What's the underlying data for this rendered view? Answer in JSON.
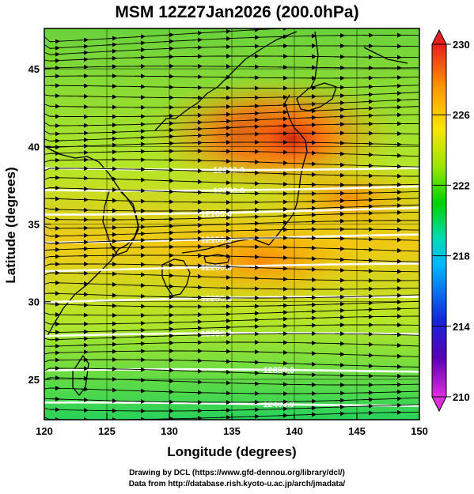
{
  "title": "MSM 12Z27Jan2026 (200.0hPa)",
  "x_axis": {
    "label": "Longitude (degrees)",
    "range": [
      120,
      150
    ],
    "ticks": [
      "120",
      "125",
      "130",
      "135",
      "140",
      "145",
      "150"
    ]
  },
  "y_axis": {
    "label": "Latitude  (degrees)",
    "range": [
      22.4,
      47.6
    ],
    "ticks": [
      "25",
      "30",
      "35",
      "40",
      "45"
    ]
  },
  "colorbar": {
    "range": [
      210,
      230
    ],
    "ticks": [
      "210",
      "214",
      "218",
      "222",
      "226",
      "230"
    ],
    "color_stops": [
      "#e02ce0",
      "#5a00b4",
      "#1428dc",
      "#00b4ff",
      "#00dcb4",
      "#00d200",
      "#96e600",
      "#fae600",
      "#ff9600",
      "#e61e1e"
    ]
  },
  "contours": [
    {
      "label": "12000.0",
      "lat": 38.6
    },
    {
      "label": "12050.0",
      "lat": 37.3
    },
    {
      "label": "12100.0",
      "lat": 35.8
    },
    {
      "label": "12150.0",
      "lat": 34.0
    },
    {
      "label": "12200.0",
      "lat": 32.1
    },
    {
      "label": "12250.0",
      "lat": 30.0
    },
    {
      "label": "12300.0",
      "lat": 27.7
    },
    {
      "label": "12350.0",
      "lat": 25.4
    },
    {
      "label": "12400.0",
      "lat": 23.3
    }
  ],
  "credits": {
    "line1": "Drawing by DCL (https://www.gfd-dennou.org/library/dcl/)",
    "line2": "Data from http://database.rish.kyoto-u.ac.jp/arch/jmadata/"
  }
}
